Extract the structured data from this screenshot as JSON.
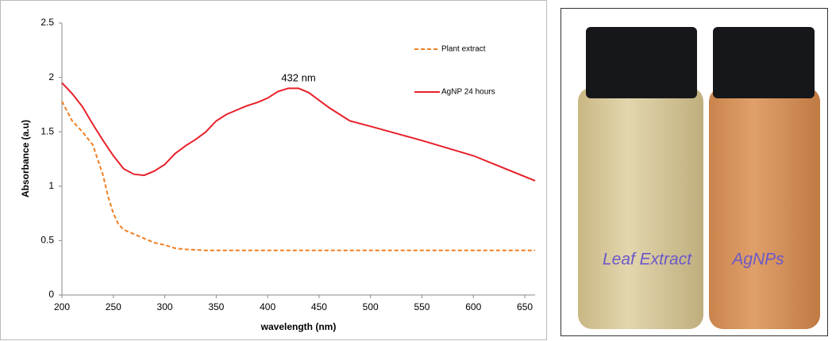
{
  "chart_data": {
    "type": "line",
    "ylabel": "Absorbance (a.u)",
    "xlabel": "wavelength (nm)",
    "annotation": "432 nm",
    "xlim": [
      200,
      660
    ],
    "xticks": [
      200,
      250,
      300,
      350,
      400,
      450,
      500,
      550,
      600,
      650
    ],
    "ylim": [
      0,
      2.5
    ],
    "yticks": [
      0,
      0.5,
      1,
      1.5,
      2,
      2.5
    ],
    "grid": false,
    "legend": "upper right",
    "series": [
      {
        "name": "Plant extract",
        "color": "#f07f22",
        "dashed": true,
        "x": [
          200,
          210,
          220,
          230,
          240,
          245,
          250,
          255,
          260,
          270,
          280,
          290,
          300,
          310,
          320,
          340,
          350,
          400,
          450,
          490,
          500,
          550,
          600,
          660
        ],
        "values": [
          1.78,
          1.6,
          1.5,
          1.38,
          1.1,
          0.9,
          0.75,
          0.65,
          0.6,
          0.56,
          0.52,
          0.48,
          0.46,
          0.43,
          0.42,
          0.41,
          0.41,
          0.41,
          0.41,
          0.41,
          0.41,
          0.41,
          0.41,
          0.41
        ]
      },
      {
        "name": "AgNP 24 hours",
        "color": "#e8202a",
        "dashed": false,
        "x": [
          200,
          210,
          220,
          230,
          240,
          250,
          260,
          270,
          280,
          290,
          300,
          310,
          320,
          330,
          340,
          350,
          360,
          370,
          380,
          390,
          400,
          410,
          420,
          430,
          440,
          450,
          460,
          470,
          480,
          500,
          550,
          600,
          660
        ],
        "values": [
          1.95,
          1.85,
          1.73,
          1.57,
          1.42,
          1.28,
          1.16,
          1.11,
          1.1,
          1.14,
          1.2,
          1.3,
          1.37,
          1.43,
          1.5,
          1.6,
          1.66,
          1.7,
          1.74,
          1.77,
          1.81,
          1.87,
          1.9,
          1.9,
          1.86,
          1.79,
          1.72,
          1.66,
          1.6,
          1.55,
          1.42,
          1.28,
          1.05
        ]
      }
    ]
  },
  "photo": {
    "labels": [
      "Leaf Extract",
      "AgNPs"
    ]
  }
}
